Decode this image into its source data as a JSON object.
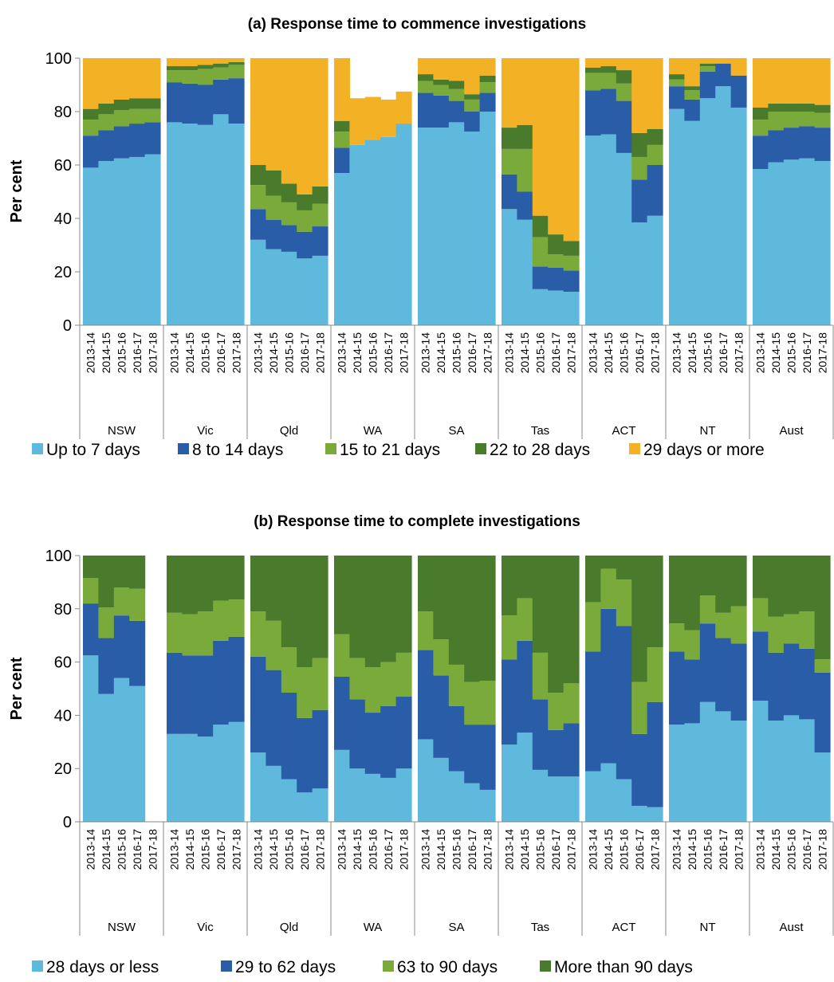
{
  "chart_data": [
    {
      "type": "bar",
      "stacked": true,
      "title": "(a) Response time to commence investigations",
      "ylabel": "Per cent",
      "ylim": [
        0,
        100
      ],
      "yticks": [
        0,
        20,
        40,
        60,
        80,
        100
      ],
      "groups": [
        "NSW",
        "Vic",
        "Qld",
        "WA",
        "SA",
        "Tas",
        "ACT",
        "NT",
        "Aust"
      ],
      "years": [
        "2013-14",
        "2014-15",
        "2015-16",
        "2016-17",
        "2017-18"
      ],
      "legend_position": "bottom",
      "series": [
        {
          "name": "Up to 7 days",
          "color": "#5EB9DC",
          "values": [
            [
              59,
              61.5,
              62.5,
              63,
              64
            ],
            [
              76,
              75.5,
              75,
              79,
              75.5
            ],
            [
              32,
              28.5,
              27.5,
              25,
              26
            ],
            [
              57,
              67.5,
              69.5,
              70.5,
              75.5
            ],
            [
              74,
              74,
              76,
              72.5,
              80
            ],
            [
              43.5,
              39.5,
              13.5,
              13,
              12.5
            ],
            [
              71,
              71.5,
              64.5,
              38.5,
              41
            ],
            [
              81,
              76.5,
              85,
              89.5,
              81.5
            ],
            [
              58.5,
              61,
              62,
              62.5,
              61.5
            ]
          ]
        },
        {
          "name": "8 to 14 days",
          "color": "#2A5DA8",
          "values": [
            [
              12,
              11.5,
              12,
              12.5,
              12
            ],
            [
              15,
              15,
              15,
              13,
              17
            ],
            [
              11.5,
              11,
              10,
              10,
              11
            ],
            [
              9.5,
              0,
              0,
              0,
              0
            ],
            [
              13,
              12,
              8,
              7.5,
              7
            ],
            [
              13,
              10.5,
              8.5,
              8.5,
              8
            ],
            [
              17,
              17,
              19.5,
              16,
              19
            ],
            [
              8.5,
              8,
              10,
              8.5,
              12
            ],
            [
              12.5,
              12,
              12,
              12,
              12.5
            ]
          ]
        },
        {
          "name": "15 to 21 days",
          "color": "#7AAB3A",
          "values": [
            [
              6,
              6,
              6,
              5.5,
              5
            ],
            [
              4.5,
              5,
              6,
              4.5,
              5
            ],
            [
              9,
              9,
              8.5,
              8,
              8.5
            ],
            [
              6,
              0,
              0,
              0,
              0
            ],
            [
              4.5,
              4,
              4.5,
              4.5,
              4
            ],
            [
              9.5,
              16,
              11,
              5,
              5.5
            ],
            [
              6.5,
              6,
              6.5,
              8.5,
              7.5
            ],
            [
              2.5,
              3.5,
              2,
              0,
              0
            ],
            [
              6,
              7,
              6,
              5.5,
              5.5
            ]
          ]
        },
        {
          "name": "22 to 28 days",
          "color": "#4A7A2C",
          "values": [
            [
              4,
              4,
              4,
              4,
              4
            ],
            [
              1.5,
              1.5,
              1.5,
              1.5,
              1
            ],
            [
              7.5,
              9.5,
              7,
              6,
              6.5
            ],
            [
              4,
              0,
              0,
              0,
              0
            ],
            [
              2.5,
              2,
              3,
              2,
              2.5
            ],
            [
              8,
              9,
              8,
              7.5,
              5.5
            ],
            [
              2,
              2.5,
              5,
              9,
              6
            ],
            [
              2,
              1.5,
              1,
              0,
              0
            ],
            [
              4.5,
              3,
              3,
              3,
              3
            ]
          ]
        },
        {
          "name": "29 days or more",
          "color": "#F3B125",
          "values": [
            [
              19,
              17,
              15.5,
              15,
              15
            ],
            [
              3,
              3,
              2.5,
              2,
              1.5
            ],
            [
              40,
              42,
              47,
              51,
              48
            ],
            [
              23.5,
              17.5,
              16,
              14,
              12
            ],
            [
              6,
              8,
              8.5,
              13.5,
              6.5
            ],
            [
              26,
              25,
              59,
              66,
              68.5
            ],
            [
              3.5,
              3,
              4.5,
              28,
              26.5
            ],
            [
              6,
              10.5,
              2,
              2,
              6.5
            ],
            [
              18.5,
              17,
              17,
              17,
              17.5
            ]
          ]
        }
      ]
    },
    {
      "type": "bar",
      "stacked": true,
      "title": "(b) Response time to complete investigations",
      "ylabel": "Per cent",
      "ylim": [
        0,
        100
      ],
      "yticks": [
        0,
        20,
        40,
        60,
        80,
        100
      ],
      "groups": [
        "NSW",
        "Vic",
        "Qld",
        "WA",
        "SA",
        "Tas",
        "ACT",
        "NT",
        "Aust"
      ],
      "years": [
        "2013-14",
        "2014-15",
        "2015-16",
        "2016-17",
        "2017-18"
      ],
      "legend_position": "bottom",
      "series": [
        {
          "name": "28 days or less",
          "color": "#5EB9DC",
          "values": [
            [
              62.5,
              48,
              54,
              51,
              0
            ],
            [
              33,
              33,
              32,
              36.5,
              37.5
            ],
            [
              26,
              21,
              16,
              11,
              12.5
            ],
            [
              27,
              20,
              18,
              16.5,
              20
            ],
            [
              31,
              24,
              19,
              14.5,
              12
            ],
            [
              29,
              33.5,
              19.5,
              17,
              17
            ],
            [
              19,
              22,
              16,
              6,
              5.5
            ],
            [
              36.5,
              37,
              45,
              41.5,
              38
            ],
            [
              45.5,
              38,
              40,
              38.5,
              26
            ]
          ]
        },
        {
          "name": "29 to 62 days",
          "color": "#2A5DA8",
          "values": [
            [
              19.5,
              21,
              23.5,
              24.5,
              0
            ],
            [
              30.5,
              29.5,
              30.5,
              31.5,
              32
            ],
            [
              36,
              36,
              32.5,
              28,
              29.5
            ],
            [
              27.5,
              26,
              23,
              27,
              27
            ],
            [
              33.5,
              31,
              24.5,
              22,
              24.5
            ],
            [
              32,
              34.5,
              26.5,
              17.5,
              20
            ],
            [
              45,
              58,
              57.5,
              27,
              39.5
            ],
            [
              27.5,
              24,
              29.5,
              27.5,
              29
            ],
            [
              26,
              25.5,
              27,
              26.5,
              30
            ]
          ]
        },
        {
          "name": "63 to 90 days",
          "color": "#7AAB3A",
          "values": [
            [
              9.5,
              11.5,
              10.5,
              12,
              0
            ],
            [
              15,
              15.5,
              16.5,
              15,
              14
            ],
            [
              17,
              18.5,
              17,
              19,
              19.5
            ],
            [
              16,
              15.5,
              17,
              16.5,
              16.5
            ],
            [
              14.5,
              13.5,
              15.5,
              16,
              16.5
            ],
            [
              16.5,
              16,
              17.5,
              14,
              15
            ],
            [
              18.5,
              15,
              17.5,
              19.5,
              20.5
            ],
            [
              10.5,
              11,
              10.5,
              9.5,
              14
            ],
            [
              12.5,
              13.5,
              11,
              14,
              5
            ]
          ]
        },
        {
          "name": "More than 90 days",
          "color": "#4A7A2C",
          "values": [
            [
              8.5,
              19.5,
              12,
              12.5,
              0
            ],
            [
              21.5,
              22,
              21,
              17,
              16.5
            ],
            [
              21,
              24.5,
              34.5,
              42,
              38.5
            ],
            [
              29.5,
              38.5,
              42,
              40,
              36.5
            ],
            [
              21,
              31.5,
              41,
              47.5,
              47
            ],
            [
              22.5,
              16,
              36.5,
              51.5,
              48
            ],
            [
              17.5,
              5,
              9,
              47.5,
              34.5
            ],
            [
              25.5,
              28,
              15,
              21.5,
              19
            ],
            [
              16,
              23,
              22,
              21,
              39
            ]
          ]
        }
      ]
    }
  ]
}
